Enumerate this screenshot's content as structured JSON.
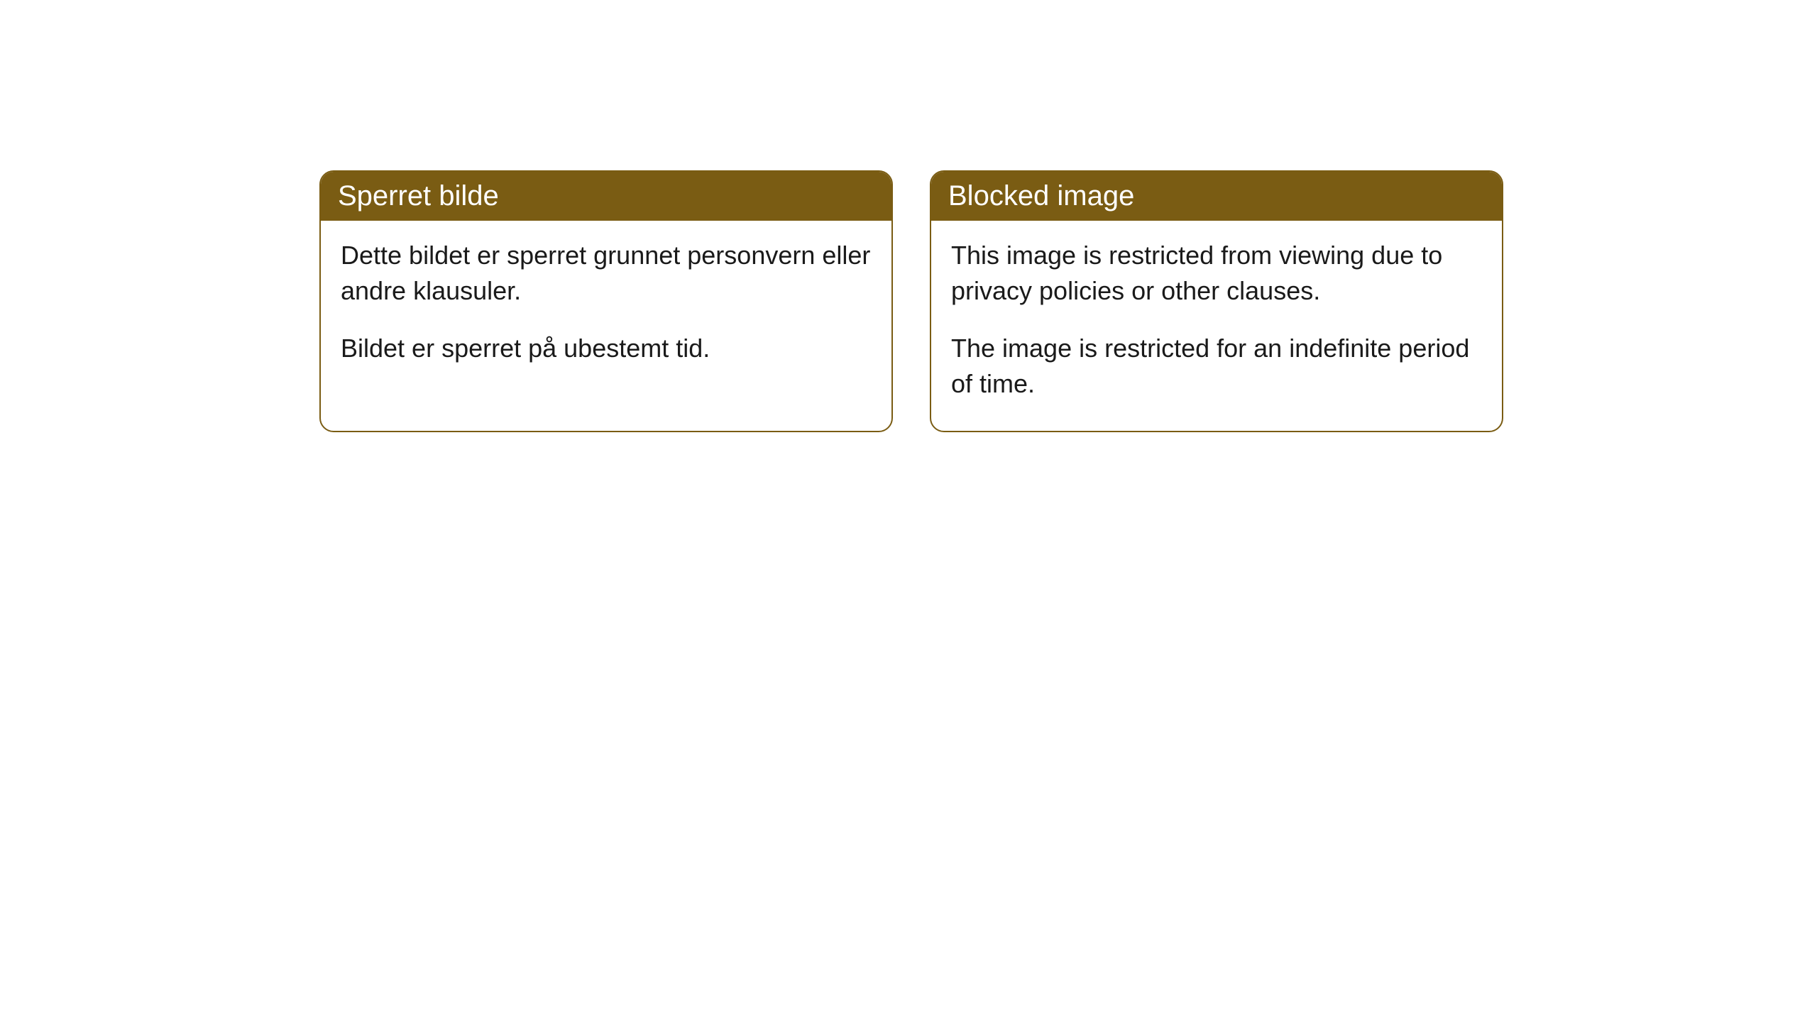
{
  "cards": [
    {
      "title": "Sperret bilde",
      "paragraph1": "Dette bildet er sperret grunnet personvern eller andre klausuler.",
      "paragraph2": "Bildet er sperret på ubestemt tid."
    },
    {
      "title": "Blocked image",
      "paragraph1": "This image is restricted from viewing due to privacy policies or other clauses.",
      "paragraph2": "The image is restricted for an indefinite period of time."
    }
  ],
  "styling": {
    "header_bg_color": "#7a5c13",
    "header_text_color": "#ffffff",
    "border_color": "#7a5c13",
    "body_bg_color": "#ffffff",
    "body_text_color": "#1a1a1a",
    "border_radius": 20,
    "header_fontsize": 40,
    "body_fontsize": 36
  }
}
